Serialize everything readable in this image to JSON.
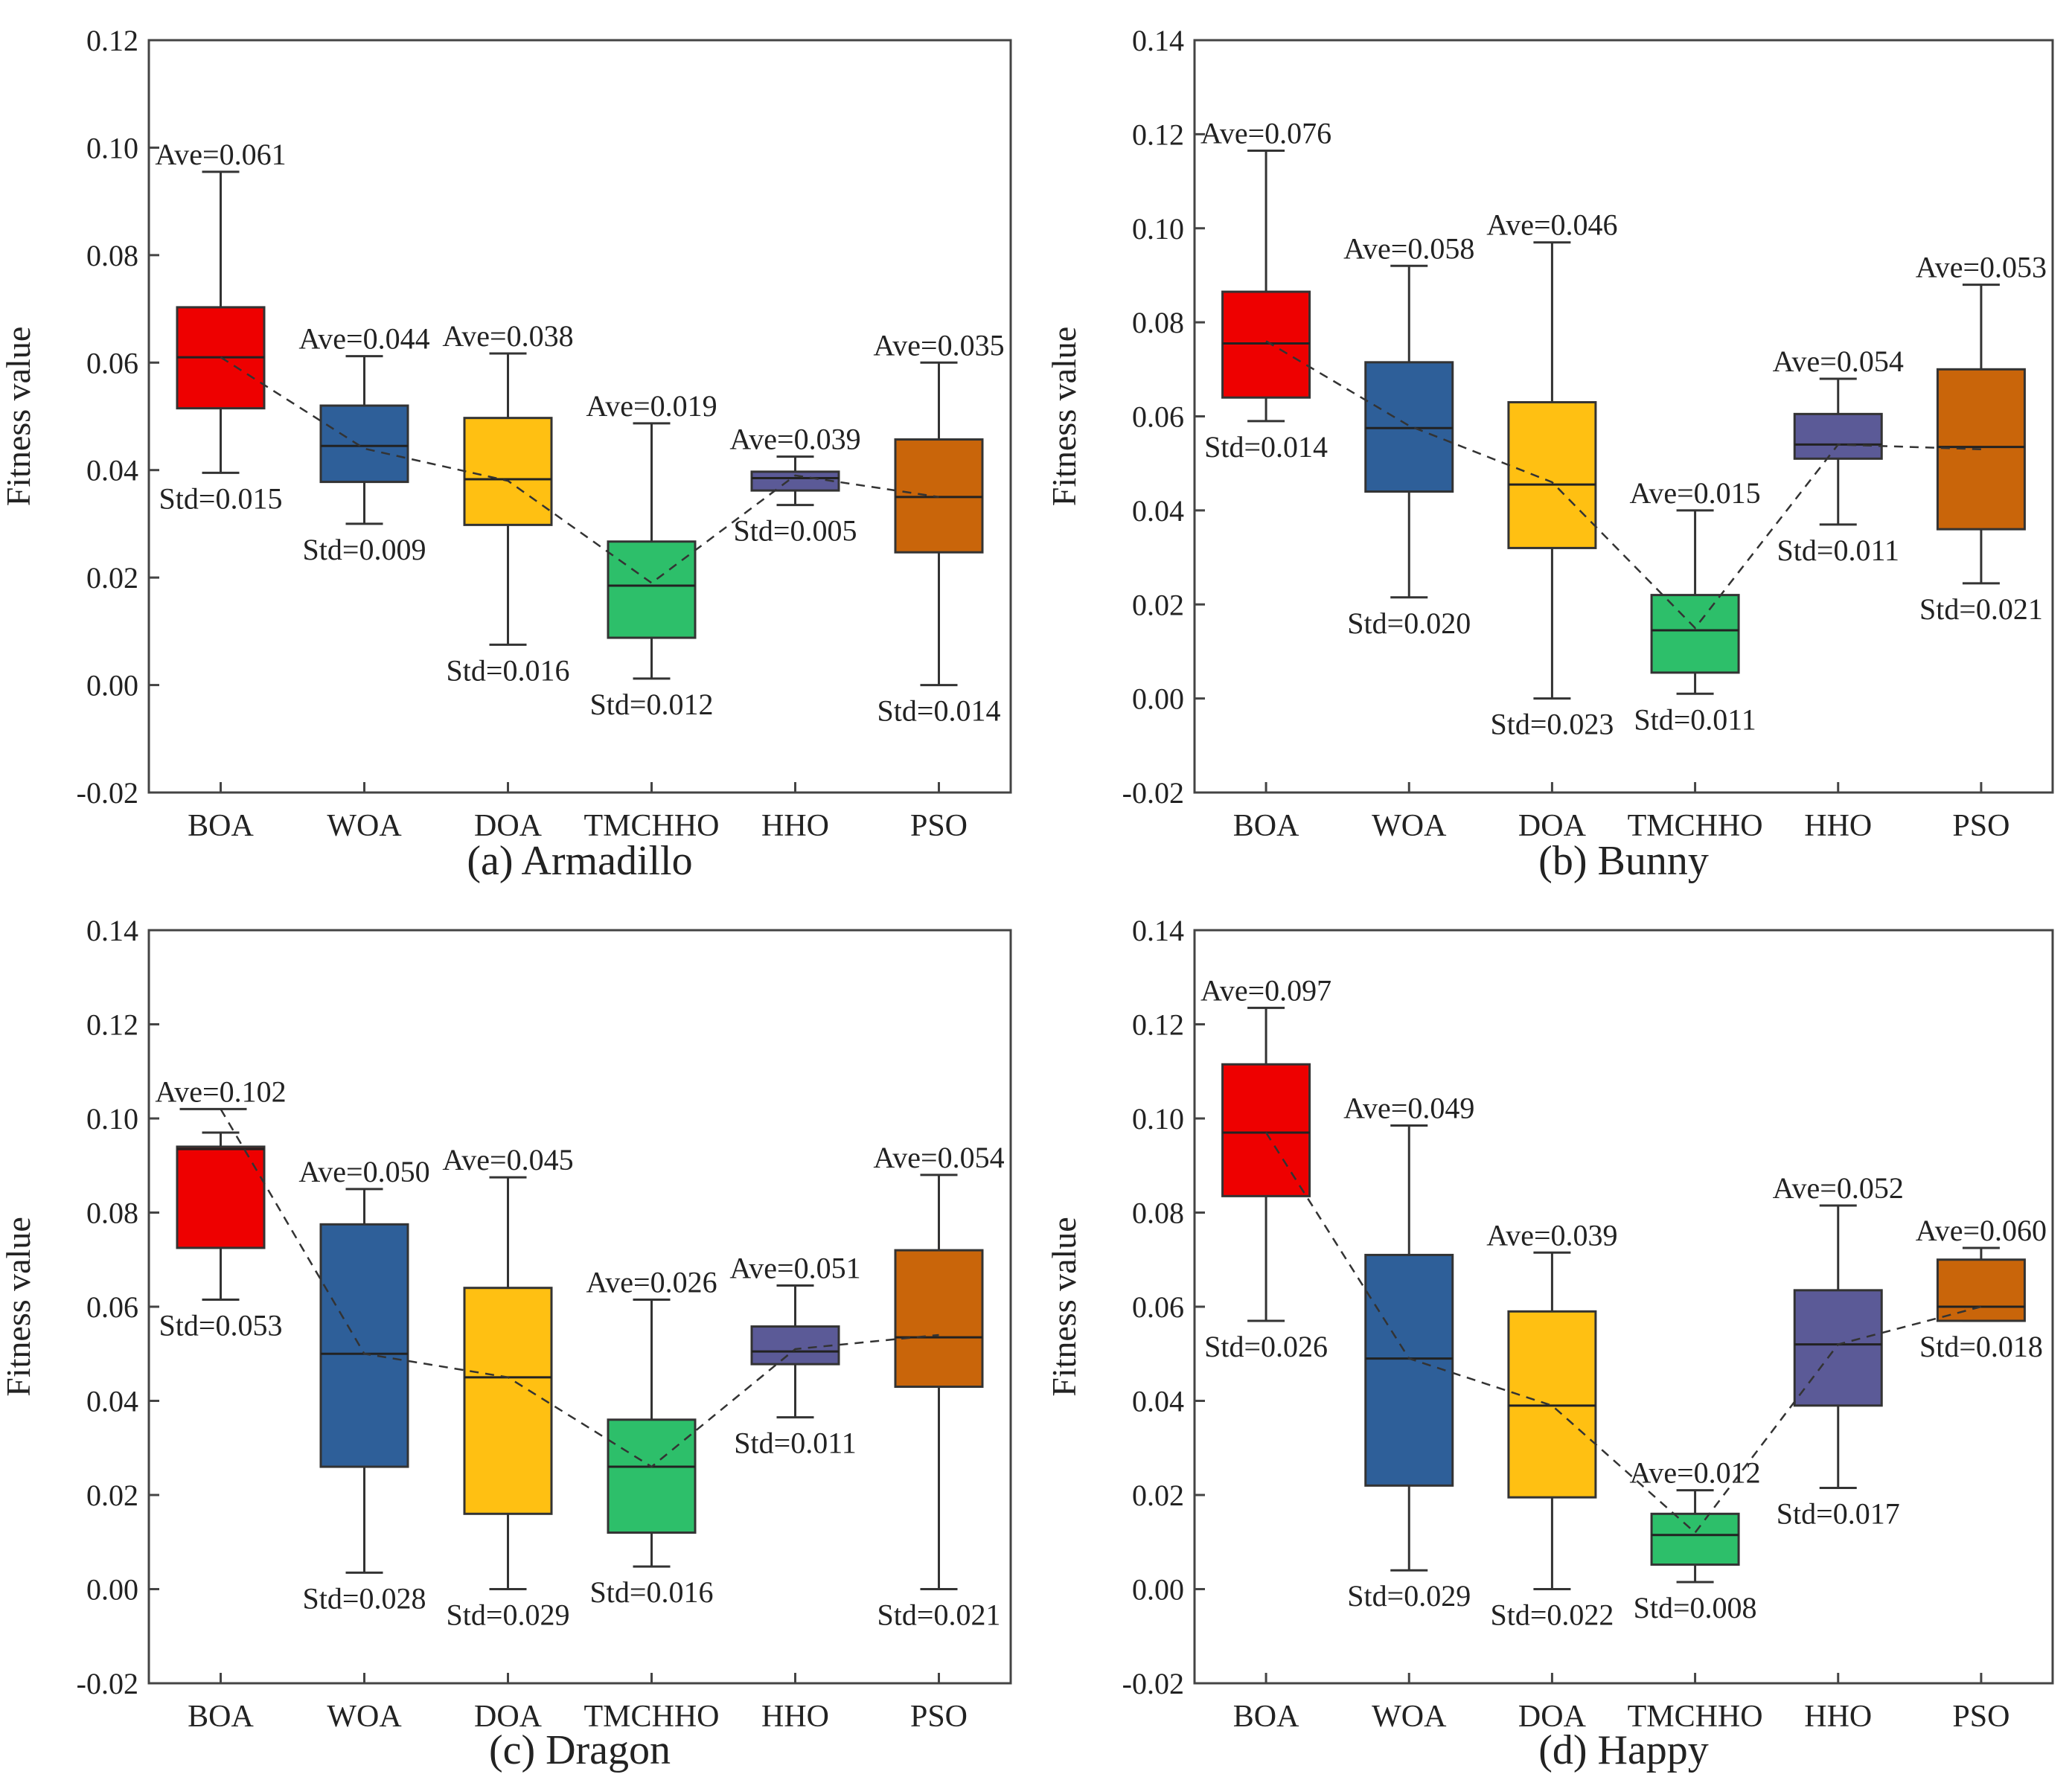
{
  "chart_data": [
    {
      "id": "a",
      "type": "box",
      "caption": "(a) Armadillo",
      "ylabel": "Fitness value",
      "ylim": [
        -0.02,
        0.12
      ],
      "yticks": [
        "-0.02",
        "0.00",
        "0.02",
        "0.04",
        "0.06",
        "0.08",
        "0.10",
        "0.12"
      ],
      "grid": false,
      "categories": [
        "BOA",
        "WOA",
        "DOA",
        "TMCHHO",
        "HHO",
        "PSO"
      ],
      "boxes": [
        {
          "name": "BOA",
          "color": "#EE0000",
          "whisker_low": 0.0395,
          "q1": 0.0515,
          "median": 0.061,
          "q3": 0.0703,
          "whisker_high": 0.0955,
          "mean": 0.061,
          "ave_label": "Ave=0.061",
          "std_label": "Std=0.015"
        },
        {
          "name": "WOA",
          "color": "#2E5F99",
          "whisker_low": 0.03,
          "q1": 0.0378,
          "median": 0.0445,
          "q3": 0.052,
          "whisker_high": 0.0612,
          "mean": 0.044,
          "ave_label": "Ave=0.044",
          "std_label": "Std=0.009"
        },
        {
          "name": "DOA",
          "color": "#FFC012",
          "whisker_low": 0.0075,
          "q1": 0.0298,
          "median": 0.0383,
          "q3": 0.0497,
          "whisker_high": 0.0617,
          "mean": 0.038,
          "ave_label": "Ave=0.038",
          "std_label": "Std=0.016"
        },
        {
          "name": "TMCHHO",
          "color": "#2DBF6A",
          "whisker_low": 0.0012,
          "q1": 0.0088,
          "median": 0.0185,
          "q3": 0.0267,
          "whisker_high": 0.0487,
          "mean": 0.019,
          "ave_label": "Ave=0.019",
          "std_label": "Std=0.012"
        },
        {
          "name": "HHO",
          "color": "#5B5A97",
          "whisker_low": 0.0335,
          "q1": 0.0362,
          "median": 0.0385,
          "q3": 0.0397,
          "whisker_high": 0.0425,
          "mean": 0.039,
          "ave_label": "Ave=0.039",
          "std_label": "Std=0.005"
        },
        {
          "name": "PSO",
          "color": "#C9650A",
          "whisker_low": 0.0,
          "q1": 0.0247,
          "median": 0.035,
          "q3": 0.0457,
          "whisker_high": 0.06,
          "mean": 0.035,
          "ave_label": "Ave=0.035",
          "std_label": "Std=0.014"
        }
      ]
    },
    {
      "id": "b",
      "type": "box",
      "caption": "(b) Bunny",
      "ylabel": "Fitness value",
      "ylim": [
        -0.02,
        0.14
      ],
      "yticks": [
        "-0.02",
        "0.00",
        "0.02",
        "0.04",
        "0.06",
        "0.08",
        "0.10",
        "0.12",
        "0.14"
      ],
      "grid": false,
      "categories": [
        "BOA",
        "WOA",
        "DOA",
        "TMCHHO",
        "HHO",
        "PSO"
      ],
      "boxes": [
        {
          "name": "BOA",
          "color": "#EE0000",
          "whisker_low": 0.059,
          "q1": 0.064,
          "median": 0.0755,
          "q3": 0.0865,
          "whisker_high": 0.1165,
          "mean": 0.076,
          "ave_label": "Ave=0.076",
          "std_label": "Std=0.014"
        },
        {
          "name": "WOA",
          "color": "#2E5F99",
          "whisker_low": 0.0215,
          "q1": 0.044,
          "median": 0.0575,
          "q3": 0.0715,
          "whisker_high": 0.092,
          "mean": 0.058,
          "ave_label": "Ave=0.058",
          "std_label": "Std=0.020"
        },
        {
          "name": "DOA",
          "color": "#FFC012",
          "whisker_low": 0.0,
          "q1": 0.032,
          "median": 0.0455,
          "q3": 0.063,
          "whisker_high": 0.097,
          "mean": 0.046,
          "ave_label": "Ave=0.046",
          "std_label": "Std=0.023"
        },
        {
          "name": "TMCHHO",
          "color": "#2DBF6A",
          "whisker_low": 0.001,
          "q1": 0.0055,
          "median": 0.0145,
          "q3": 0.022,
          "whisker_high": 0.04,
          "mean": 0.015,
          "ave_label": "Ave=0.015",
          "std_label": "Std=0.011"
        },
        {
          "name": "HHO",
          "color": "#5B5A97",
          "whisker_low": 0.037,
          "q1": 0.051,
          "median": 0.054,
          "q3": 0.0605,
          "whisker_high": 0.068,
          "mean": 0.054,
          "ave_label": "Ave=0.054",
          "std_label": "Std=0.011"
        },
        {
          "name": "PSO",
          "color": "#C9650A",
          "whisker_low": 0.0245,
          "q1": 0.036,
          "median": 0.0535,
          "q3": 0.07,
          "whisker_high": 0.088,
          "mean": 0.053,
          "ave_label": "Ave=0.053",
          "std_label": "Std=0.021"
        }
      ]
    },
    {
      "id": "c",
      "type": "box",
      "caption": "(c) Dragon",
      "ylabel": "Fitness value",
      "ylim": [
        -0.02,
        0.14
      ],
      "yticks": [
        "-0.02",
        "0.00",
        "0.02",
        "0.04",
        "0.06",
        "0.08",
        "0.10",
        "0.12",
        "0.14"
      ],
      "grid": false,
      "categories": [
        "BOA",
        "WOA",
        "DOA",
        "TMCHHO",
        "HHO",
        "PSO"
      ],
      "boxes": [
        {
          "name": "BOA",
          "color": "#EE0000",
          "whisker_low": 0.0615,
          "q1": 0.0725,
          "median": 0.0935,
          "q3": 0.094,
          "whisker_high": 0.097,
          "mean": 0.102,
          "ave_label": "Ave=0.102",
          "std_label": "Std=0.053",
          "outlier": 0.102
        },
        {
          "name": "WOA",
          "color": "#2E5F99",
          "whisker_low": 0.0035,
          "q1": 0.026,
          "median": 0.05,
          "q3": 0.0775,
          "whisker_high": 0.085,
          "mean": 0.05,
          "ave_label": "Ave=0.050",
          "std_label": "Std=0.028"
        },
        {
          "name": "DOA",
          "color": "#FFC012",
          "whisker_low": 0.0,
          "q1": 0.016,
          "median": 0.045,
          "q3": 0.064,
          "whisker_high": 0.0875,
          "mean": 0.045,
          "ave_label": "Ave=0.045",
          "std_label": "Std=0.029"
        },
        {
          "name": "TMCHHO",
          "color": "#2DBF6A",
          "whisker_low": 0.0048,
          "q1": 0.012,
          "median": 0.026,
          "q3": 0.036,
          "whisker_high": 0.0615,
          "mean": 0.026,
          "ave_label": "Ave=0.026",
          "std_label": "Std=0.016"
        },
        {
          "name": "HHO",
          "color": "#5B5A97",
          "whisker_low": 0.0365,
          "q1": 0.0478,
          "median": 0.0505,
          "q3": 0.0558,
          "whisker_high": 0.0645,
          "mean": 0.051,
          "ave_label": "Ave=0.051",
          "std_label": "Std=0.011"
        },
        {
          "name": "PSO",
          "color": "#C9650A",
          "whisker_low": 0.0,
          "q1": 0.043,
          "median": 0.0535,
          "q3": 0.072,
          "whisker_high": 0.088,
          "mean": 0.054,
          "ave_label": "Ave=0.054",
          "std_label": "Std=0.021"
        }
      ]
    },
    {
      "id": "d",
      "type": "box",
      "caption": "(d) Happy",
      "ylabel": "Fitness value",
      "ylim": [
        -0.02,
        0.14
      ],
      "yticks": [
        "-0.02",
        "0.00",
        "0.02",
        "0.04",
        "0.06",
        "0.08",
        "0.10",
        "0.12",
        "0.14"
      ],
      "grid": false,
      "categories": [
        "BOA",
        "WOA",
        "DOA",
        "TMCHHO",
        "HHO",
        "PSO"
      ],
      "boxes": [
        {
          "name": "BOA",
          "color": "#EE0000",
          "whisker_low": 0.057,
          "q1": 0.0835,
          "median": 0.097,
          "q3": 0.1115,
          "whisker_high": 0.1235,
          "mean": 0.097,
          "ave_label": "Ave=0.097",
          "std_label": "Std=0.026"
        },
        {
          "name": "WOA",
          "color": "#2E5F99",
          "whisker_low": 0.004,
          "q1": 0.022,
          "median": 0.049,
          "q3": 0.071,
          "whisker_high": 0.0985,
          "mean": 0.049,
          "ave_label": "Ave=0.049",
          "std_label": "Std=0.029"
        },
        {
          "name": "DOA",
          "color": "#FFC012",
          "whisker_low": 0.0,
          "q1": 0.0195,
          "median": 0.039,
          "q3": 0.059,
          "whisker_high": 0.0715,
          "mean": 0.039,
          "ave_label": "Ave=0.039",
          "std_label": "Std=0.022"
        },
        {
          "name": "TMCHHO",
          "color": "#2DBF6A",
          "whisker_low": 0.0015,
          "q1": 0.0052,
          "median": 0.0115,
          "q3": 0.016,
          "whisker_high": 0.021,
          "mean": 0.012,
          "ave_label": "Ave=0.012",
          "std_label": "Std=0.008"
        },
        {
          "name": "HHO",
          "color": "#5B5A97",
          "whisker_low": 0.0215,
          "q1": 0.039,
          "median": 0.052,
          "q3": 0.0635,
          "whisker_high": 0.0815,
          "mean": 0.052,
          "ave_label": "Ave=0.052",
          "std_label": "Std=0.017"
        },
        {
          "name": "PSO",
          "color": "#C9650A",
          "whisker_low": 0.057,
          "q1": 0.057,
          "median": 0.06,
          "q3": 0.07,
          "whisker_high": 0.0725,
          "mean": 0.06,
          "ave_label": "Ave=0.060",
          "std_label": "Std=0.018"
        }
      ]
    }
  ]
}
